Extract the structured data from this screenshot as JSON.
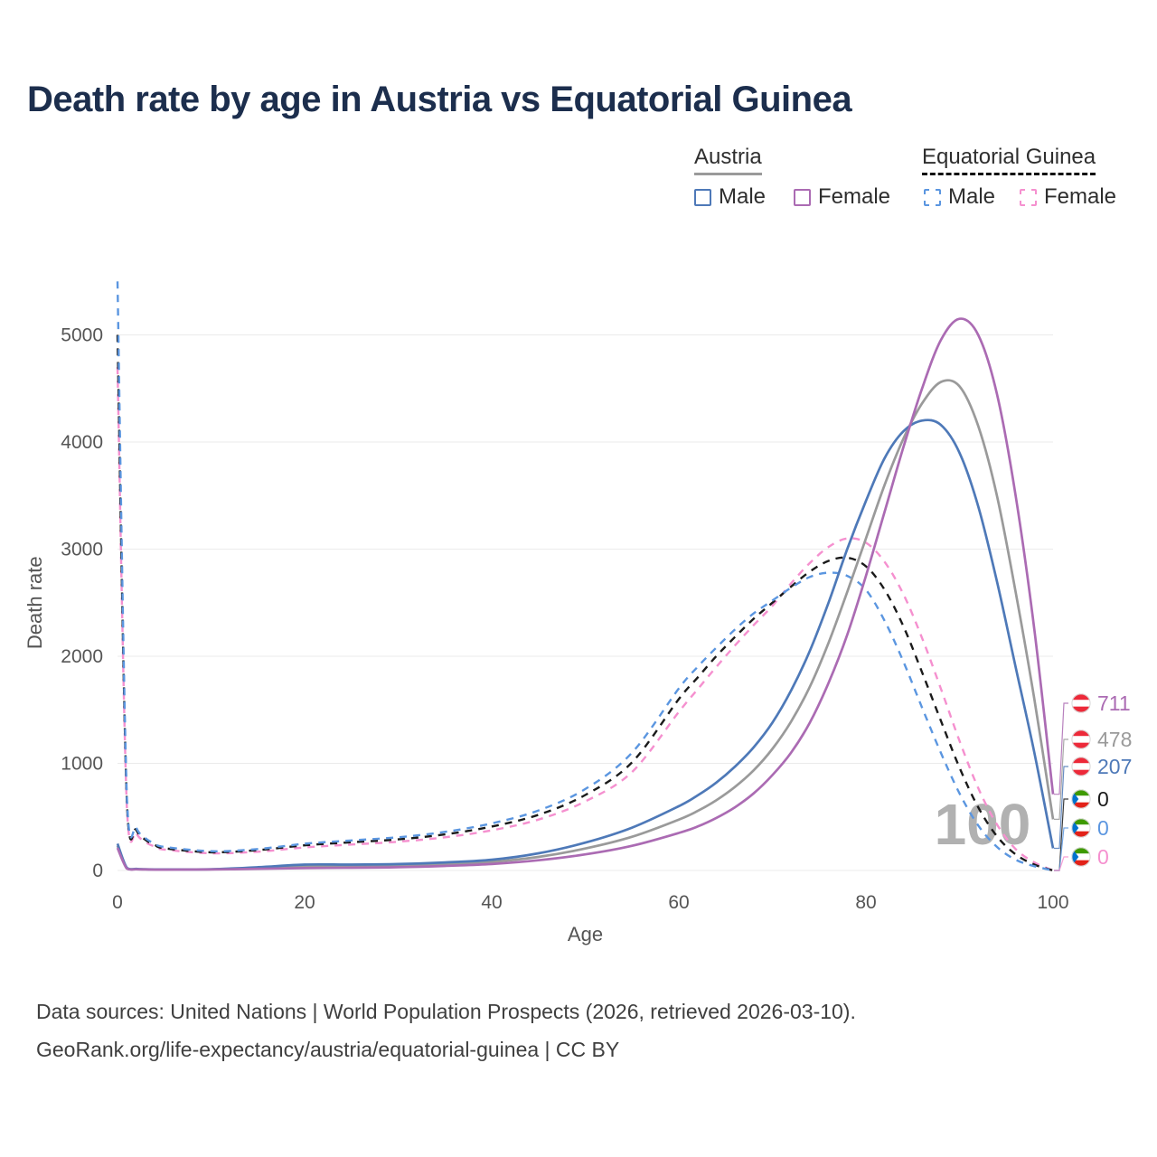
{
  "title": "Death rate by age in Austria vs Equatorial Guinea",
  "legend": {
    "austria_label": "Austria",
    "eq_guinea_label": "Equatorial Guinea",
    "austria_male": "Male",
    "austria_female": "Female",
    "eg_male": "Male",
    "eg_female": "Female"
  },
  "chart_data": {
    "type": "line",
    "title": "Death rate by age in Austria vs Equatorial Guinea",
    "xlabel": "Age",
    "ylabel": "Death rate",
    "xlim": [
      0,
      100
    ],
    "ylim": [
      0,
      5500
    ],
    "x_ticks": [
      0,
      20,
      40,
      60,
      80,
      100
    ],
    "y_ticks": [
      0,
      1000,
      2000,
      3000,
      4000,
      5000
    ],
    "grid": true,
    "legend_position": "top-right",
    "age_watermark": "100",
    "x": [
      0,
      1,
      2,
      3,
      4,
      5,
      10,
      15,
      20,
      25,
      30,
      35,
      40,
      45,
      50,
      55,
      60,
      62,
      64,
      66,
      68,
      70,
      72,
      74,
      76,
      78,
      80,
      82,
      84,
      86,
      88,
      90,
      92,
      94,
      96,
      98,
      100
    ],
    "series": [
      {
        "name": "Austria male",
        "country": "Austria",
        "sex": "male",
        "color": "#4e79b8",
        "dash": "solid",
        "values": [
          250,
          25,
          15,
          12,
          10,
          10,
          12,
          30,
          55,
          55,
          60,
          75,
          100,
          160,
          260,
          400,
          600,
          700,
          820,
          970,
          1150,
          1380,
          1680,
          2050,
          2500,
          3000,
          3450,
          3850,
          4100,
          4200,
          4160,
          3900,
          3400,
          2700,
          1900,
          1100,
          207
        ]
      },
      {
        "name": "Austria female",
        "country": "Austria",
        "sex": "female",
        "color": "#ab6bb3",
        "dash": "solid",
        "values": [
          210,
          18,
          11,
          9,
          8,
          8,
          9,
          15,
          22,
          25,
          30,
          42,
          60,
          95,
          150,
          230,
          350,
          410,
          490,
          590,
          720,
          890,
          1100,
          1380,
          1750,
          2200,
          2750,
          3350,
          3950,
          4500,
          4950,
          5150,
          5000,
          4450,
          3500,
          2250,
          711
        ]
      },
      {
        "name": "Austria",
        "country": "Austria",
        "sex": "both",
        "color": "#9a9a9a",
        "dash": "solid",
        "values": [
          230,
          21,
          13,
          10,
          9,
          9,
          10,
          22,
          38,
          40,
          45,
          58,
          80,
          127,
          205,
          315,
          475,
          555,
          655,
          780,
          935,
          1135,
          1390,
          1715,
          2125,
          2600,
          3100,
          3600,
          4030,
          4360,
          4560,
          4520,
          4150,
          3500,
          2600,
          1600,
          478
        ]
      },
      {
        "name": "Equatorial Guinea male",
        "country": "Equatorial Guinea",
        "sex": "male",
        "color": "#5b96e0",
        "dash": "dashed",
        "values": [
          5500,
          700,
          400,
          300,
          250,
          220,
          180,
          200,
          250,
          280,
          310,
          360,
          440,
          560,
          760,
          1100,
          1700,
          1900,
          2080,
          2250,
          2400,
          2520,
          2640,
          2740,
          2780,
          2750,
          2620,
          2330,
          1950,
          1520,
          1100,
          720,
          420,
          220,
          100,
          40,
          0
        ]
      },
      {
        "name": "Equatorial Guinea female",
        "country": "Equatorial Guinea",
        "sex": "female",
        "color": "#f590cf",
        "dash": "dashed",
        "values": [
          4700,
          600,
          350,
          265,
          222,
          195,
          160,
          175,
          215,
          242,
          268,
          310,
          375,
          475,
          645,
          920,
          1480,
          1690,
          1900,
          2100,
          2290,
          2470,
          2680,
          2870,
          3020,
          3100,
          3060,
          2880,
          2580,
          2170,
          1700,
          1210,
          770,
          430,
          200,
          75,
          0
        ]
      },
      {
        "name": "Equatorial Guinea",
        "country": "Equatorial Guinea",
        "sex": "both",
        "color": "#1a1a1a",
        "dash": "dashed",
        "values": [
          5000,
          650,
          380,
          285,
          237,
          208,
          170,
          190,
          235,
          263,
          290,
          337,
          410,
          520,
          705,
          1010,
          1600,
          1800,
          2000,
          2180,
          2350,
          2500,
          2650,
          2790,
          2890,
          2920,
          2840,
          2620,
          2280,
          1850,
          1400,
          960,
          590,
          320,
          150,
          55,
          0
        ]
      }
    ],
    "end_labels": [
      {
        "value": "711",
        "series": "Austria female",
        "flag": "austria"
      },
      {
        "value": "478",
        "series": "Austria",
        "flag": "austria"
      },
      {
        "value": "207",
        "series": "Austria male",
        "flag": "austria"
      },
      {
        "value": "0",
        "series": "Equatorial Guinea",
        "flag": "equatorial-guinea"
      },
      {
        "value": "0",
        "series": "Equatorial Guinea male",
        "flag": "equatorial-guinea"
      },
      {
        "value": "0",
        "series": "Equatorial Guinea female",
        "flag": "equatorial-guinea"
      }
    ]
  },
  "footer": {
    "line1": "Data sources: United Nations | World Population Prospects (2026, retrieved 2026-03-10).",
    "line2": "GeoRank.org/life-expectancy/austria/equatorial-guinea | CC BY"
  }
}
